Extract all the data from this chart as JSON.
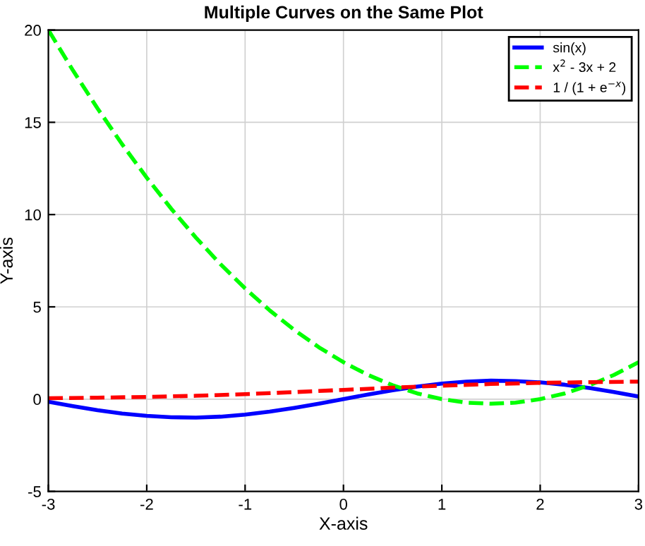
{
  "chart_data": {
    "type": "line",
    "title": "Multiple Curves on the Same Plot",
    "xlabel": "X-axis",
    "ylabel": "Y-axis",
    "x": [
      -3,
      -2.75,
      -2.5,
      -2.25,
      -2,
      -1.75,
      -1.5,
      -1.25,
      -1,
      -0.75,
      -0.5,
      -0.25,
      0,
      0.25,
      0.5,
      0.75,
      1,
      1.25,
      1.5,
      1.75,
      2,
      2.25,
      2.5,
      2.75,
      3
    ],
    "series": [
      {
        "name": "sin(x)",
        "color": "#0000ff",
        "line_style": "solid",
        "values": [
          -0.14,
          -0.38,
          -0.6,
          -0.78,
          -0.91,
          -0.98,
          -1.0,
          -0.95,
          -0.84,
          -0.68,
          -0.48,
          -0.25,
          0,
          0.25,
          0.48,
          0.68,
          0.84,
          0.95,
          1.0,
          0.98,
          0.91,
          0.78,
          0.6,
          0.38,
          0.14
        ]
      },
      {
        "name": "x$^{2}$ - 3x + 2",
        "color": "#00ff00",
        "line_style": "dashed",
        "values": [
          20,
          17.81,
          15.75,
          13.81,
          12,
          10.31,
          8.75,
          7.31,
          6,
          4.81,
          3.75,
          2.81,
          2,
          1.31,
          0.75,
          0.31,
          0,
          -0.19,
          -0.25,
          -0.19,
          0,
          0.31,
          0.75,
          1.31,
          2
        ]
      },
      {
        "name": "1 / (1 + e$^{−x}$)",
        "color": "#ff0000",
        "line_style": "dashed",
        "x": [
          -3,
          -2.5,
          -2,
          -1.5,
          -1,
          -0.5,
          0,
          0.5,
          1,
          1.5,
          2,
          2.5,
          3
        ],
        "values": [
          0.05,
          0.08,
          0.12,
          0.18,
          0.27,
          0.38,
          0.5,
          0.62,
          0.73,
          0.82,
          0.88,
          0.92,
          0.95
        ]
      }
    ],
    "xlim": [
      -3,
      3
    ],
    "xticks": [
      -3,
      -2,
      -1,
      0,
      1,
      2,
      3
    ],
    "ylim": [
      -5,
      20
    ],
    "yticks": [
      -5,
      0,
      5,
      10,
      15,
      20
    ],
    "grid": true,
    "legend": "top right"
  }
}
